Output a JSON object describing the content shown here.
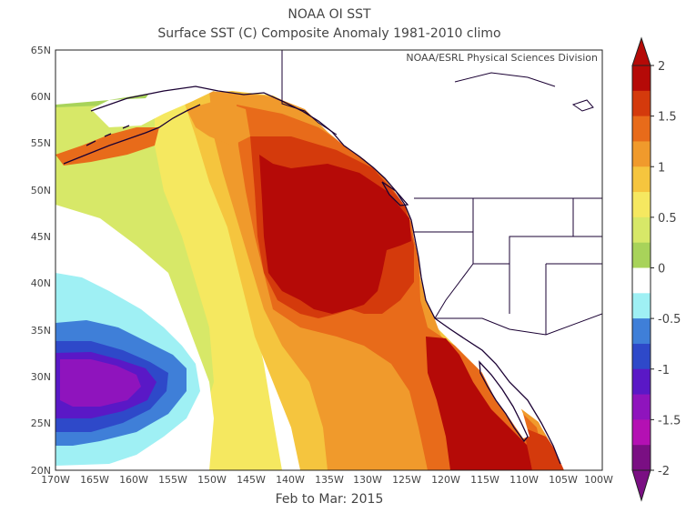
{
  "title": "NOAA OI SST",
  "subtitle": "Surface SST (C) Composite Anomaly 1981-2010 climo",
  "credit": "NOAA/ESRL Physical Sciences Division",
  "period": "Feb to Mar: 2015",
  "lat_ticks": [
    "65N",
    "60N",
    "55N",
    "50N",
    "45N",
    "40N",
    "35N",
    "30N",
    "25N",
    "20N"
  ],
  "lon_ticks": [
    "170W",
    "165W",
    "160W",
    "155W",
    "150W",
    "145W",
    "140W",
    "135W",
    "130W",
    "125W",
    "120W",
    "115W",
    "110W",
    "105W",
    "100W"
  ],
  "colorbar": {
    "labels": [
      "2",
      "1.5",
      "1",
      "0.5",
      "0",
      "-0.5",
      "-1",
      "-1.5",
      "-2"
    ],
    "colors": [
      "#b50a07",
      "#d43a0c",
      "#e86b1a",
      "#f09a2c",
      "#f5c53e",
      "#f5e860",
      "#d7e868",
      "#a8d35a",
      "#ffffff",
      "#9ff0f4",
      "#3f7fd8",
      "#2e49c9",
      "#5a18c6",
      "#8f14bd",
      "#b410b3",
      "#7a0f83"
    ]
  }
}
